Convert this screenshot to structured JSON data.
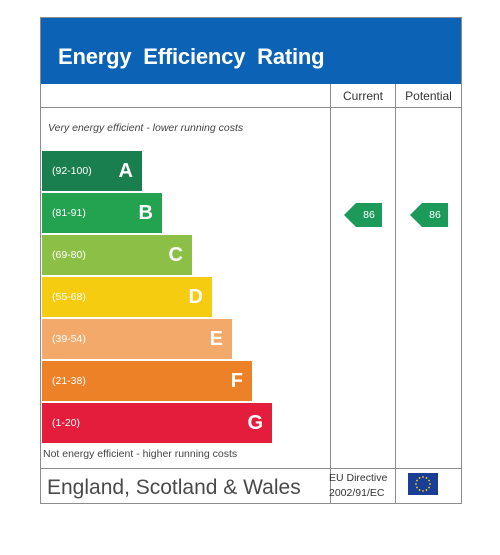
{
  "header": {
    "title": "Energy  Efficiency  Rating"
  },
  "columns": {
    "current": "Current",
    "potential": "Potential"
  },
  "notes": {
    "top": "Very energy efficient - lower running costs",
    "bottom": "Not energy efficient - higher running costs"
  },
  "bands": [
    {
      "range": "(92-100)",
      "letter": "A",
      "color": "#1a7f4e"
    },
    {
      "range": "(81-91)",
      "letter": "B",
      "color": "#23a24f"
    },
    {
      "range": "(69-80)",
      "letter": "C",
      "color": "#8cbf45"
    },
    {
      "range": "(55-68)",
      "letter": "D",
      "color": "#f6cc11"
    },
    {
      "range": "(39-54)",
      "letter": "E",
      "color": "#f2a96a"
    },
    {
      "range": "(21-38)",
      "letter": "F",
      "color": "#ec8128"
    },
    {
      "range": "(1-20)",
      "letter": "G",
      "color": "#e31d3b"
    }
  ],
  "ratings": {
    "current": {
      "value": "86",
      "band": "B",
      "color": "#1b9a59"
    },
    "potential": {
      "value": "86",
      "band": "B",
      "color": "#1b9a59"
    }
  },
  "footer": {
    "country": "England, Scotland & Wales",
    "directive_line1": "EU Directive",
    "directive_line2": "2002/91/EC",
    "flag_icon": "eu-flag-icon"
  }
}
